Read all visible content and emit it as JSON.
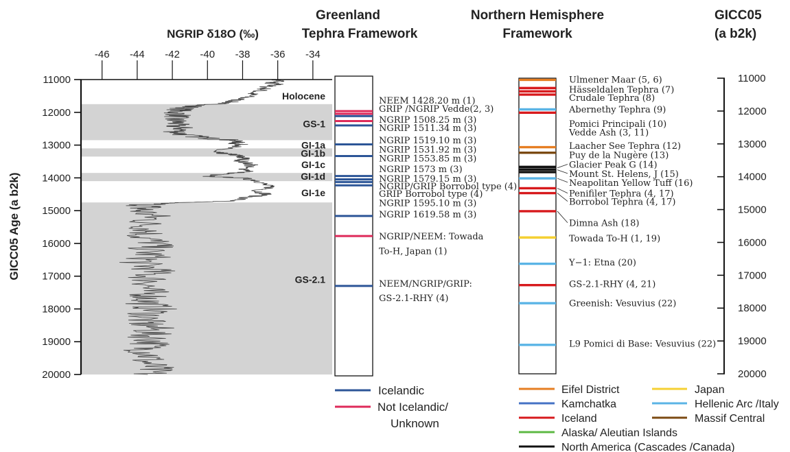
{
  "chart_data": {
    "type": "line",
    "title": "NGRIP δ18O (‰)",
    "ylabel": "GICC05 Age (a b2k)",
    "x_ticks": [
      "-46",
      "-44",
      "-42",
      "-40",
      "-38",
      "-36",
      "-34"
    ],
    "x_ticks_values": [
      -46,
      -44,
      -42,
      -40,
      -38,
      -36,
      -34
    ],
    "xlim": [
      -47.2,
      -32.9
    ],
    "y_ticks": [
      "11000",
      "12000",
      "13000",
      "14000",
      "15000",
      "16000",
      "17000",
      "18000",
      "19000",
      "20000"
    ],
    "ylim": [
      11000,
      20000
    ],
    "series": [
      {
        "x": [
          11000,
          11050,
          11100,
          11150,
          11200,
          11300,
          11400,
          11500,
          11600,
          11700,
          11750,
          11800,
          11900,
          12000,
          12100,
          12200,
          12300,
          12400,
          12500,
          12600,
          12700,
          12800,
          12850,
          12900,
          12950,
          13000,
          13100,
          13200,
          13250,
          13300,
          13350,
          13400,
          13500,
          13600,
          13700,
          13800,
          13900,
          13950,
          14000,
          14100,
          14200,
          14300,
          14400,
          14500,
          14600,
          14700,
          14750,
          14800,
          14900,
          15000,
          15200,
          15400,
          15600,
          15800,
          16000,
          16200,
          16400,
          16600,
          16800,
          17000,
          17200,
          17400,
          17600,
          17800,
          18000,
          18200,
          18400,
          18600,
          18800,
          19000,
          19200,
          19400,
          19600,
          19800,
          20000
        ],
        "values": [
          -36.2,
          -35.8,
          -36.5,
          -36.0,
          -36.6,
          -36.8,
          -37.4,
          -37.6,
          -38.2,
          -38.8,
          -39.5,
          -40.8,
          -41.5,
          -41.8,
          -41.6,
          -42.0,
          -41.7,
          -41.9,
          -41.4,
          -41.8,
          -41.2,
          -39.8,
          -38.6,
          -38.2,
          -38.5,
          -37.9,
          -39.0,
          -39.8,
          -39.2,
          -38.4,
          -38.2,
          -37.9,
          -38.1,
          -37.4,
          -38.0,
          -37.5,
          -39.4,
          -40.2,
          -38.1,
          -37.0,
          -36.8,
          -36.4,
          -37.2,
          -36.6,
          -37.8,
          -38.5,
          -41.5,
          -43.2,
          -43.6,
          -43.8,
          -43.1,
          -43.6,
          -43.2,
          -43.7,
          -42.9,
          -43.5,
          -43.2,
          -43.9,
          -43.0,
          -43.4,
          -43.1,
          -43.6,
          -43.2,
          -43.5,
          -43.0,
          -43.4,
          -43.7,
          -43.1,
          -43.4,
          -43.0,
          -43.6,
          -43.2,
          -43.5,
          -43.1,
          -43.4
        ]
      }
    ],
    "intervals": [
      {
        "label": "Holocene",
        "from": 11000,
        "to": 11750,
        "shaded": false,
        "label_color": "#c0c0c0"
      },
      {
        "label": "GS-1",
        "from": 11750,
        "to": 12850,
        "shaded": true,
        "label_color": "#111111"
      },
      {
        "label": "GI-1a",
        "from": 12850,
        "to": 13100,
        "shaded": false,
        "label_color": "#c0c0c0"
      },
      {
        "label": "GI-1b",
        "from": 13100,
        "to": 13350,
        "shaded": true,
        "label_color": "#111111"
      },
      {
        "label": "GI-1c",
        "from": 13350,
        "to": 13850,
        "shaded": false,
        "label_color": "#c0c0c0"
      },
      {
        "label": "GI-1d",
        "from": 13850,
        "to": 14100,
        "shaded": true,
        "label_color": "#111111"
      },
      {
        "label": "GI-1e",
        "from": 14100,
        "to": 14750,
        "shaded": false,
        "label_color": "#c0c0c0"
      },
      {
        "label": "GS-2.1",
        "from": 14750,
        "to": 20000,
        "shaded": true,
        "label_color": "#111111"
      }
    ],
    "interval_label_ages": [
      11500,
      12350,
      13000,
      13250,
      13600,
      13950,
      14450,
      17100
    ],
    "colors": {
      "shade": "#d3d3d3",
      "curve": "#444444",
      "icelandic": "#2c5597",
      "not_icelandic": "#de2a5a"
    }
  },
  "greenland": {
    "header_line1": "Greenland",
    "header_line2": "Tephra Framework",
    "layers": [
      {
        "age": 12050,
        "type": "not_icelandic"
      },
      {
        "age": 12130,
        "type": "not_icelandic"
      },
      {
        "age": 12200,
        "type": "icelandic"
      },
      {
        "age": 12350,
        "type": "not_icelandic"
      },
      {
        "age": 12480,
        "type": "icelandic"
      },
      {
        "age": 13050,
        "type": "icelandic"
      },
      {
        "age": 13400,
        "type": "icelandic"
      },
      {
        "age": 14000,
        "type": "icelandic"
      },
      {
        "age": 14100,
        "type": "icelandic"
      },
      {
        "age": 14180,
        "type": "icelandic"
      },
      {
        "age": 14280,
        "type": "icelandic"
      },
      {
        "age": 15200,
        "type": "icelandic"
      },
      {
        "age": 15800,
        "type": "not_icelandic"
      },
      {
        "age": 17300,
        "type": "icelandic"
      }
    ],
    "labels": [
      {
        "text": "NEEM 1428.20 m (1)",
        "age": 11720
      },
      {
        "text": "GRIP /NGRIP Vedde(2, 3)",
        "age": 11970
      },
      {
        "text": "NGRIP 1508.25 m (3)",
        "age": 12300
      },
      {
        "text": "NGRIP 1511.34 m (3)",
        "age": 12540
      },
      {
        "text": "NGRIP 1519.10 m (3)",
        "age": 12920
      },
      {
        "text": "NGRIP 1531.92 m (3)",
        "age": 13190
      },
      {
        "text": "NGRIP 1553.85 m (3)",
        "age": 13460
      },
      {
        "text": "NGRIP 1573 m (3)",
        "age": 13780
      },
      {
        "text": "NGRIP 1579.15 m (3)",
        "age": 14070
      },
      {
        "text": "NGRIP/GRIP Borrobol type (4)",
        "age": 14300
      },
      {
        "text": "GRIP Borrobol type (4)",
        "age": 14520
      },
      {
        "text": "NGRIP 1595.10 m (3)",
        "age": 14800
      },
      {
        "text": "NGRIP 1619.58 m (3)",
        "age": 15140
      },
      {
        "text": "NGRIP/NEEM: Towada",
        "age": 15800
      },
      {
        "text": "To-H, Japan (1)",
        "age": 16240
      },
      {
        "text": "NEEM/NGRIP/GRIP:",
        "age": 17220
      },
      {
        "text": "GS-2.1-RHY (4)",
        "age": 17650
      }
    ],
    "legend": [
      {
        "type": "icelandic",
        "lines": [
          "Icelandic"
        ]
      },
      {
        "type": "not_icelandic",
        "lines": [
          "Not Icelandic/",
          "Unknown"
        ]
      }
    ]
  },
  "northern": {
    "header_line1": "Northern Hemisphere",
    "header_line2": "Framework",
    "source_colors": {
      "eifel": "#e67e22",
      "kamchatka": "#4472c4",
      "iceland": "#d7191c",
      "alaska": "#5cb843",
      "north_america": "#111111",
      "japan": "#f5d033",
      "hellenic": "#5ab4e6",
      "massif": "#7b4a12"
    },
    "layers": [
      {
        "age": 11050,
        "source": "eifel"
      },
      {
        "age": 11300,
        "source": "iceland"
      },
      {
        "age": 11400,
        "source": "iceland"
      },
      {
        "age": 11500,
        "source": "iceland"
      },
      {
        "age": 11950,
        "source": "hellenic"
      },
      {
        "age": 12050,
        "source": "iceland"
      },
      {
        "age": 13100,
        "source": "eifel"
      },
      {
        "age": 13270,
        "source": "massif"
      },
      {
        "age": 13700,
        "source": "north_america"
      },
      {
        "age": 13780,
        "source": "north_america"
      },
      {
        "age": 13860,
        "source": "north_america"
      },
      {
        "age": 14050,
        "source": "hellenic"
      },
      {
        "age": 14350,
        "source": "iceland"
      },
      {
        "age": 14500,
        "source": "iceland"
      },
      {
        "age": 15050,
        "source": "iceland"
      },
      {
        "age": 15850,
        "source": "japan"
      },
      {
        "age": 16650,
        "source": "hellenic"
      },
      {
        "age": 17300,
        "source": "iceland"
      },
      {
        "age": 17850,
        "source": "hellenic"
      },
      {
        "age": 19120,
        "source": "hellenic"
      }
    ],
    "labels": [
      {
        "text": "Ulmener Maar (5, 6)",
        "age": 11030
      },
      {
        "text": "Hässeldalen Tephra (7)",
        "age": 11330
      },
      {
        "text": "Crudale Tephra (8)",
        "age": 11580
      },
      {
        "text": "Abernethy Tephra (9)",
        "age": 11940
      },
      {
        "text": "Pomici Principali (10)",
        "age": 12380
      },
      {
        "text": "Vedde Ash (3, 11)",
        "age": 12640
      },
      {
        "text": "Laacher See Tephra (12)",
        "age": 13050
      },
      {
        "text": "Puy de la Nugère (13)",
        "age": 13330
      },
      {
        "text": "Glacier Peak G (14)",
        "age": 13620
      },
      {
        "text": "Mount St. Helens, J (15)",
        "age": 13900
      },
      {
        "text": "Neapolitan Yellow Tuff (16)",
        "age": 14170
      },
      {
        "text": "Penifiler Tephra (4, 17)",
        "age": 14500
      },
      {
        "text": "Borrobol Tephra (4, 17)",
        "age": 14750
      },
      {
        "text": "Dimna Ash (18)",
        "age": 15400
      },
      {
        "text": "Towada To-H (1, 19)",
        "age": 15870
      },
      {
        "text": "Y−1: Etna (20)",
        "age": 16600
      },
      {
        "text": "GS-2.1-RHY (4, 21)",
        "age": 17250
      },
      {
        "text": "Greenish: Vesuvius (22)",
        "age": 17840
      },
      {
        "text": "L9 Pomici di Base: Vesuvius (22)",
        "age": 19070
      }
    ],
    "legend_left": [
      {
        "source": "eifel",
        "label": "Eifel District"
      },
      {
        "source": "kamchatka",
        "label": "Kamchatka"
      },
      {
        "source": "iceland",
        "label": "Iceland"
      },
      {
        "source": "alaska",
        "label": "Alaska/ Aleutian Islands"
      },
      {
        "source": "north_america",
        "label": "North America (Cascades /Canada)"
      }
    ],
    "legend_right": [
      {
        "source": "japan",
        "label": "Japan"
      },
      {
        "source": "hellenic",
        "label": "Hellenic Arc /Italy"
      },
      {
        "source": "massif",
        "label": "Massif Central"
      }
    ]
  },
  "gicc": {
    "header_line1": "GICC05",
    "header_line2": "(a b2k)"
  }
}
